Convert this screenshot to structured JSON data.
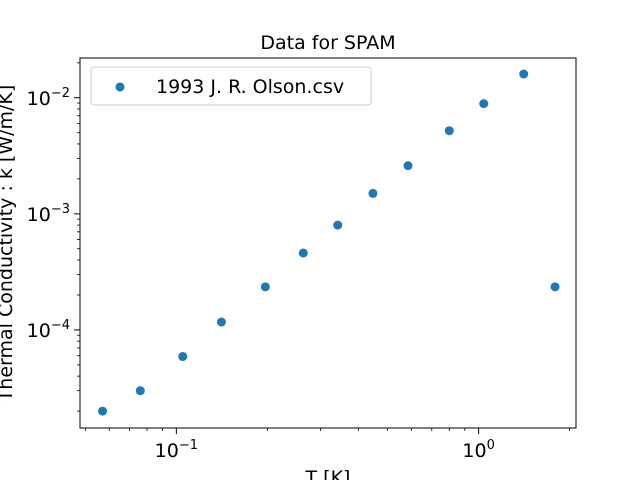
{
  "chart_data": {
    "type": "scatter",
    "title": "Data for SPAM",
    "xlabel": "T [K]",
    "ylabel": "Thermal Conductivity : k [W/m/K]",
    "xscale": "log",
    "yscale": "log",
    "xlim": [
      0.048,
      2.1
    ],
    "ylim": [
      1.43e-05,
      0.022
    ],
    "grid": false,
    "legend": "top-left",
    "x_major_ticks": [
      {
        "value": 0.1,
        "base": "10",
        "exp": "−1"
      },
      {
        "value": 1,
        "base": "10",
        "exp": "0"
      }
    ],
    "y_major_ticks": [
      {
        "value": 0.0001,
        "base": "10",
        "exp": "−4"
      },
      {
        "value": 0.001,
        "base": "10",
        "exp": "−3"
      },
      {
        "value": 0.01,
        "base": "10",
        "exp": "−2"
      }
    ],
    "series": [
      {
        "name": "1993 J. R. Olson.csv",
        "color": "#1f77b4",
        "points": [
          {
            "x": 0.057,
            "y": 2e-05
          },
          {
            "x": 0.076,
            "y": 3e-05
          },
          {
            "x": 0.105,
            "y": 5.9e-05
          },
          {
            "x": 0.141,
            "y": 0.000117
          },
          {
            "x": 0.197,
            "y": 0.000235
          },
          {
            "x": 0.263,
            "y": 0.00046
          },
          {
            "x": 0.342,
            "y": 0.0008
          },
          {
            "x": 0.447,
            "y": 0.0015
          },
          {
            "x": 0.584,
            "y": 0.0026
          },
          {
            "x": 0.8,
            "y": 0.0052
          },
          {
            "x": 1.04,
            "y": 0.0089
          },
          {
            "x": 1.41,
            "y": 0.016
          },
          {
            "x": 1.79,
            "y": 0.000235
          }
        ]
      }
    ]
  }
}
